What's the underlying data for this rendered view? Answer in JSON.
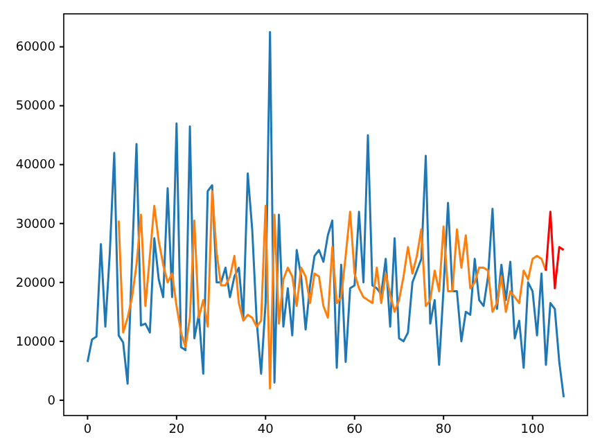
{
  "chart_data": {
    "type": "line",
    "xlim": [
      -5.35,
      112.35
    ],
    "ylim": [
      -2600,
      65600
    ],
    "xticks": [
      0,
      20,
      40,
      60,
      80,
      100
    ],
    "yticks": [
      0,
      10000,
      20000,
      30000,
      40000,
      50000,
      60000
    ],
    "grid": false,
    "series": [
      {
        "color": "#1f77b4",
        "x": [
          0,
          1,
          2,
          3,
          4,
          5,
          6,
          7,
          8,
          9,
          10,
          11,
          12,
          13,
          14,
          15,
          16,
          17,
          18,
          19,
          20,
          21,
          22,
          23,
          24,
          25,
          26,
          27,
          28,
          29,
          30,
          31,
          32,
          33,
          34,
          35,
          36,
          37,
          38,
          39,
          40,
          41,
          42,
          43,
          44,
          45,
          46,
          47,
          48,
          49,
          50,
          51,
          52,
          53,
          54,
          55,
          56,
          57,
          58,
          59,
          60,
          61,
          62,
          63,
          64,
          65,
          66,
          67,
          68,
          69,
          70,
          71,
          72,
          73,
          74,
          75,
          76,
          77,
          78,
          79,
          80,
          81,
          82,
          83,
          84,
          85,
          86,
          87,
          88,
          89,
          90,
          91,
          92,
          93,
          94,
          95,
          96,
          97,
          98,
          99,
          100,
          101,
          102,
          103,
          104,
          105,
          106,
          107
        ],
        "values": [
          6500,
          10300,
          10800,
          26500,
          12500,
          25000,
          42000,
          11000,
          9800,
          2800,
          24000,
          43500,
          12700,
          13000,
          11500,
          27500,
          20500,
          17500,
          36000,
          17500,
          47000,
          9000,
          8500,
          46500,
          10500,
          14500,
          4500,
          35500,
          36500,
          20000,
          20000,
          22500,
          17500,
          21000,
          22500,
          14000,
          38500,
          29000,
          13500,
          4500,
          16500,
          62500,
          3000,
          31500,
          12500,
          19000,
          11000,
          25500,
          21000,
          12000,
          19500,
          24500,
          25500,
          23500,
          28000,
          30500,
          5500,
          23000,
          6500,
          19000,
          19500,
          32000,
          20000,
          45000,
          19500,
          19000,
          18000,
          24000,
          12500,
          27500,
          10500,
          10000,
          11500,
          20000,
          22000,
          24000,
          41500,
          13000,
          17000,
          6000,
          19000,
          33500,
          18500,
          18500,
          10000,
          15000,
          14500,
          24000,
          17000,
          16000,
          21000,
          32500,
          15500,
          23000,
          17000,
          23500,
          10500,
          13500,
          5500,
          20000,
          18500,
          11000,
          21500,
          6000,
          16500,
          15500,
          6500,
          500
        ]
      },
      {
        "color": "#ff7f0e",
        "x": [
          7,
          8,
          9,
          10,
          11,
          12,
          13,
          14,
          15,
          16,
          17,
          18,
          19,
          20,
          21,
          22,
          23,
          24,
          25,
          26,
          27,
          28,
          29,
          30,
          31,
          32,
          33,
          34,
          35,
          36,
          37,
          38,
          39,
          40,
          41,
          42,
          43,
          44,
          45,
          46,
          47,
          48,
          49,
          50,
          51,
          52,
          53,
          54,
          55,
          56,
          57,
          58,
          59,
          60,
          61,
          62,
          63,
          64,
          65,
          66,
          67,
          68,
          69,
          70,
          71,
          72,
          73,
          74,
          75,
          76,
          77,
          78,
          79,
          80,
          81,
          82,
          83,
          84,
          85,
          86,
          87,
          88,
          89,
          90,
          91,
          92,
          93,
          94,
          95,
          96,
          97,
          98,
          99,
          100,
          101,
          102,
          103
        ],
        "values": [
          30500,
          11500,
          14000,
          17500,
          23000,
          31500,
          16000,
          24500,
          33000,
          27000,
          23000,
          20000,
          21500,
          16000,
          11500,
          9000,
          14000,
          30500,
          14000,
          17000,
          12500,
          35500,
          25000,
          19500,
          19500,
          21000,
          24500,
          16500,
          13500,
          14500,
          14000,
          12500,
          13500,
          33000,
          2000,
          31500,
          13000,
          20500,
          22500,
          21000,
          16000,
          22500,
          21000,
          16500,
          21500,
          21000,
          16000,
          14000,
          26000,
          16500,
          17500,
          24500,
          32000,
          21500,
          19000,
          17500,
          17000,
          16500,
          22500,
          16500,
          21500,
          18000,
          15000,
          17000,
          21000,
          26000,
          21500,
          24500,
          29000,
          16000,
          17000,
          22000,
          18500,
          29500,
          18500,
          18500,
          29000,
          22500,
          28000,
          19000,
          20000,
          22500,
          22500,
          22000,
          15000,
          16500,
          21000,
          15000,
          18500,
          17500,
          16500,
          22000,
          20500,
          24000,
          24500,
          24000,
          22000
        ]
      },
      {
        "color": "#ff0000",
        "x": [
          103,
          104,
          105,
          106,
          107
        ],
        "values": [
          22000,
          32000,
          19000,
          26000,
          25500
        ]
      }
    ]
  }
}
